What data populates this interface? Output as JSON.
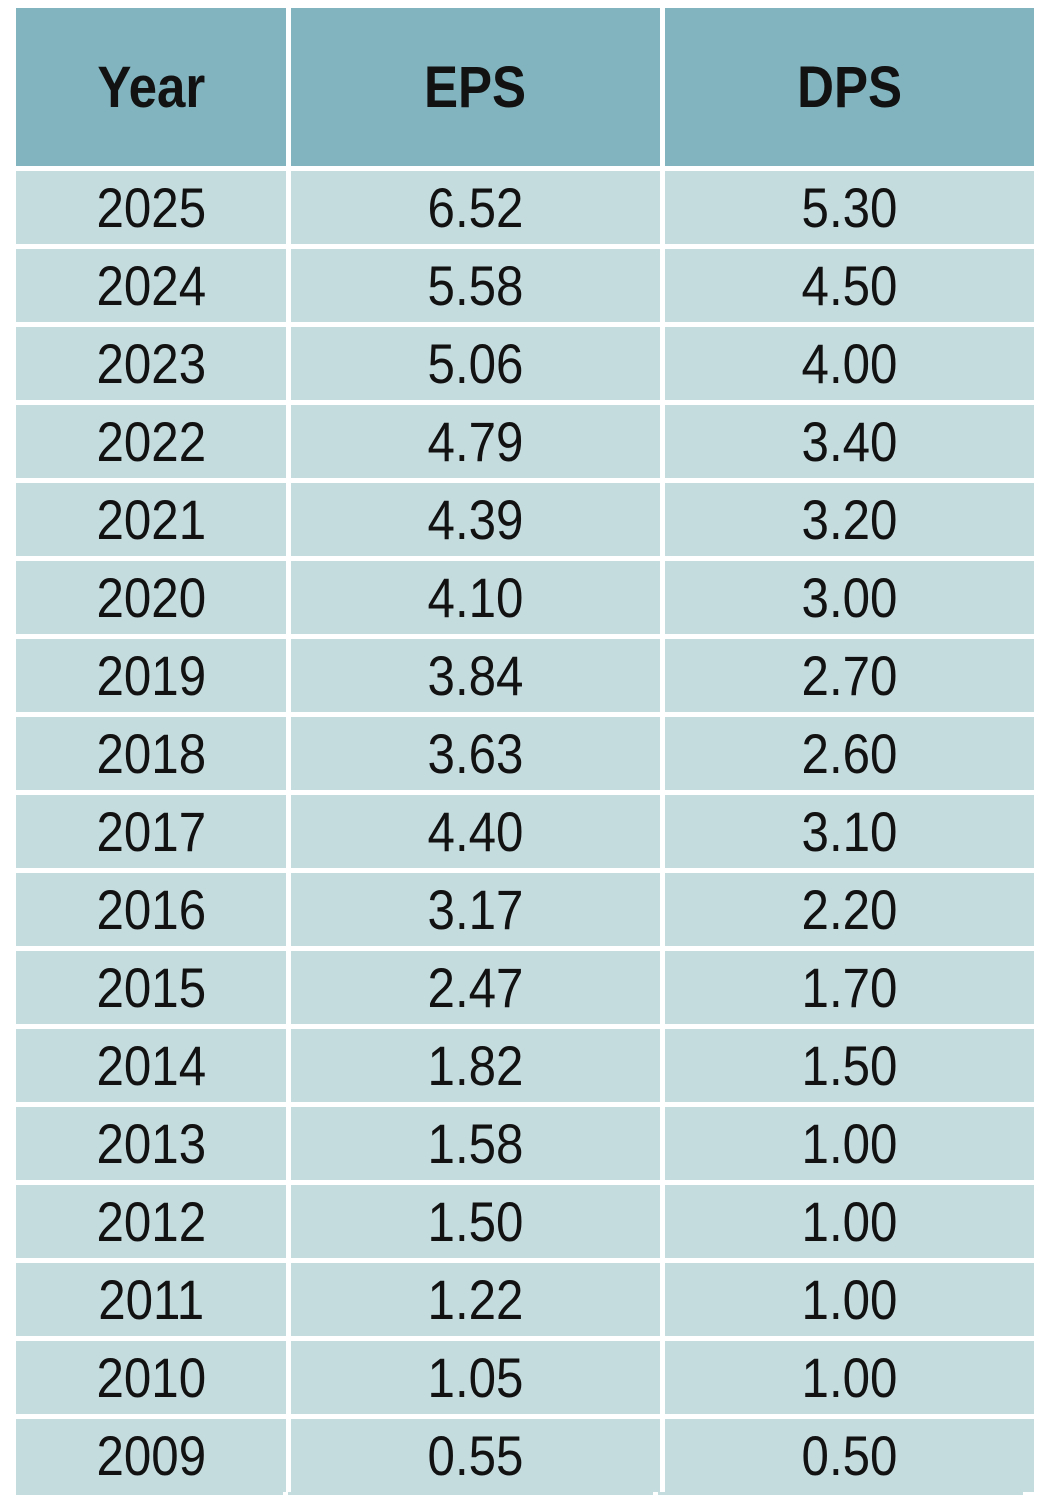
{
  "table": {
    "columns": [
      "Year",
      "EPS",
      "DPS"
    ],
    "rows": [
      {
        "year": "2025",
        "eps": "6.52",
        "dps": "5.30"
      },
      {
        "year": "2024",
        "eps": "5.58",
        "dps": "4.50"
      },
      {
        "year": "2023",
        "eps": "5.06",
        "dps": "4.00"
      },
      {
        "year": "2022",
        "eps": "4.79",
        "dps": "3.40"
      },
      {
        "year": "2021",
        "eps": "4.39",
        "dps": "3.20"
      },
      {
        "year": "2020",
        "eps": "4.10",
        "dps": "3.00"
      },
      {
        "year": "2019",
        "eps": "3.84",
        "dps": "2.70"
      },
      {
        "year": "2018",
        "eps": "3.63",
        "dps": "2.60"
      },
      {
        "year": "2017",
        "eps": "4.40",
        "dps": "3.10"
      },
      {
        "year": "2016",
        "eps": "3.17",
        "dps": "2.20"
      },
      {
        "year": "2015",
        "eps": "2.47",
        "dps": "1.70"
      },
      {
        "year": "2014",
        "eps": "1.82",
        "dps": "1.50"
      },
      {
        "year": "2013",
        "eps": "1.58",
        "dps": "1.00"
      },
      {
        "year": "2012",
        "eps": "1.50",
        "dps": "1.00"
      },
      {
        "year": "2011",
        "eps": "1.22",
        "dps": "1.00"
      },
      {
        "year": "2010",
        "eps": "1.05",
        "dps": "1.00"
      },
      {
        "year": "2009",
        "eps": "0.55",
        "dps": "0.50"
      }
    ]
  },
  "colors": {
    "header_bg": "#81b4be",
    "row_bg": "#c5dcdf",
    "grid": "#ffffff",
    "text": "#121212"
  },
  "chart_data": {
    "type": "table",
    "columns": [
      "Year",
      "EPS",
      "DPS"
    ],
    "rows": [
      [
        2025,
        6.52,
        5.3
      ],
      [
        2024,
        5.58,
        4.5
      ],
      [
        2023,
        5.06,
        4.0
      ],
      [
        2022,
        4.79,
        3.4
      ],
      [
        2021,
        4.39,
        3.2
      ],
      [
        2020,
        4.1,
        3.0
      ],
      [
        2019,
        3.84,
        2.7
      ],
      [
        2018,
        3.63,
        2.6
      ],
      [
        2017,
        4.4,
        3.1
      ],
      [
        2016,
        3.17,
        2.2
      ],
      [
        2015,
        2.47,
        1.7
      ],
      [
        2014,
        1.82,
        1.5
      ],
      [
        2013,
        1.58,
        1.0
      ],
      [
        2012,
        1.5,
        1.0
      ],
      [
        2011,
        1.22,
        1.0
      ],
      [
        2010,
        1.05,
        1.0
      ],
      [
        2009,
        0.55,
        0.5
      ]
    ]
  }
}
